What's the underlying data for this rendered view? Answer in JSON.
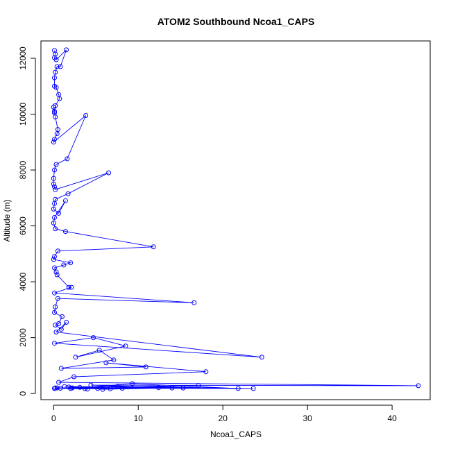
{
  "chart_data": {
    "type": "scatter",
    "title": "ATOM2 Southbound Ncoa1_CAPS",
    "xlabel": "Ncoa1_CAPS",
    "ylabel": "Altitude (m)",
    "xlim": [
      -1.5,
      44.5
    ],
    "ylim": [
      -220,
      12620
    ],
    "x_ticks": [
      0,
      10,
      20,
      30,
      40
    ],
    "x_tick_labels": [
      "0",
      "10",
      "20",
      "30",
      "40"
    ],
    "y_ticks": [
      0,
      2000,
      4000,
      6000,
      8000,
      10000,
      12000
    ],
    "y_tick_labels": [
      "0",
      "2000",
      "4000",
      "6000",
      "8000",
      "10000",
      "12000"
    ],
    "grid": false,
    "legend": "none",
    "series_color": "#0000ff",
    "marker": "open-circle",
    "line_connected": true,
    "series": [
      {
        "x": [
          0.1,
          0.2,
          0.1,
          0.3,
          1.5,
          0.8,
          0.4,
          0.2,
          0.1,
          0.1,
          0.3,
          0.6,
          0.7,
          0.2,
          0.1,
          0.0,
          0.1,
          0.2,
          0.5,
          0.4,
          0.1,
          0.0,
          3.8,
          1.6,
          0.3,
          0.1,
          0.0,
          0.0,
          0.1,
          0.2,
          6.5,
          1.7,
          0.2,
          0.1,
          0.0,
          0.6,
          1.4,
          0.1,
          0.0,
          0.2,
          1.4,
          11.8,
          0.5,
          0.1,
          0.0,
          2.0,
          1.2,
          0.1,
          0.3,
          0.4,
          1.8,
          2.1,
          0.1,
          16.6,
          0.5,
          0.2,
          0.1,
          1.0,
          0.6,
          0.2,
          0.9,
          1.5,
          0.3,
          24.6,
          0.1,
          4.7,
          8.5,
          2.6,
          5.4,
          7.1,
          0.9,
          10.9,
          6.2,
          18.0,
          2.4,
          0.6,
          43.1,
          4.4,
          15.3,
          1.3,
          23.6,
          7.6,
          3.1,
          5.2,
          17.1,
          0.4,
          21.8,
          9.3,
          2.0,
          14.0,
          5.8,
          1.8,
          8.1,
          6.7,
          0.2,
          3.7,
          12.4,
          0.8,
          4.0,
          2.2,
          0.1
        ],
        "y": [
          12280,
          12150,
          12020,
          11950,
          12300,
          11700,
          11700,
          11500,
          11300,
          11000,
          10950,
          10700,
          10550,
          10300,
          10100,
          10250,
          10050,
          9900,
          9450,
          9300,
          9100,
          9000,
          9950,
          8400,
          8200,
          8000,
          7700,
          7500,
          7400,
          7300,
          7900,
          7150,
          6950,
          6800,
          6600,
          6450,
          6900,
          6300,
          6100,
          5900,
          5800,
          5250,
          5100,
          4900,
          4800,
          4680,
          4600,
          4500,
          4350,
          4250,
          3800,
          3800,
          3600,
          3250,
          3400,
          3100,
          2900,
          2750,
          2500,
          2450,
          2300,
          2550,
          2200,
          1300,
          1800,
          2000,
          1700,
          1300,
          1550,
          1200,
          900,
          950,
          1100,
          780,
          600,
          400,
          280,
          300,
          200,
          250,
          180,
          260,
          220,
          180,
          290,
          200,
          180,
          350,
          180,
          200,
          150,
          230,
          190,
          170,
          200,
          170,
          210,
          190,
          160,
          200,
          180
        ]
      }
    ]
  }
}
